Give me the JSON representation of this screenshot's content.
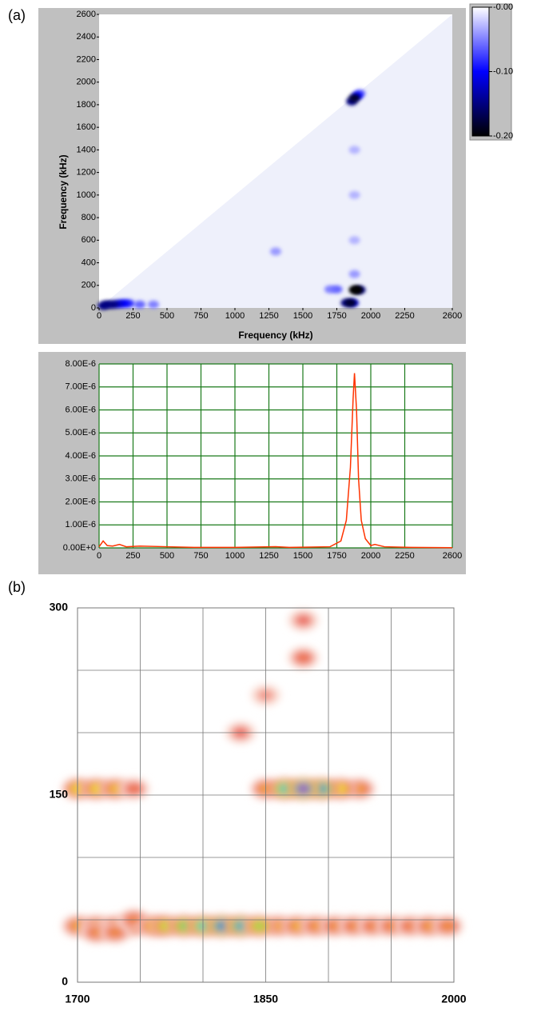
{
  "panel_labels": [
    "(a)",
    "(b)"
  ],
  "chart_data": [
    {
      "type": "heatmap",
      "xlabel": "Frequency (kHz)",
      "ylabel": "Frequency (kHz)",
      "xlim": [
        0,
        2600
      ],
      "ylim": [
        0,
        2600
      ],
      "xticks": [
        0,
        250,
        500,
        750,
        1000,
        1250,
        1500,
        1750,
        2000,
        2250,
        2600
      ],
      "yticks": [
        0,
        200,
        400,
        600,
        800,
        1000,
        1200,
        1400,
        1600,
        1800,
        2000,
        2200,
        2400,
        2600
      ],
      "clim": [
        -0.2,
        0
      ],
      "colormap": [
        "#000000",
        "#0000ff",
        "#ffffff"
      ],
      "cticks": [
        {
          "value": 0,
          "label": "-0.00"
        },
        {
          "value": -0.1,
          "label": "-0.10"
        },
        {
          "value": -0.2,
          "label": "-0.20"
        }
      ],
      "x": [
        400,
        300,
        220,
        180,
        140,
        100,
        60,
        30,
        1880,
        1880,
        1880,
        1880,
        1300,
        1700,
        1750,
        1920,
        1900,
        1860,
        1880,
        1870,
        1820,
        1850,
        1920,
        1880,
        1900
      ],
      "y": [
        30,
        30,
        40,
        40,
        35,
        30,
        30,
        20,
        300,
        600,
        1000,
        1400,
        500,
        165,
        165,
        1900,
        1880,
        1830,
        1860,
        45,
        45,
        45,
        160,
        160,
        160
      ],
      "z": [
        -0.05,
        -0.06,
        -0.08,
        -0.1,
        -0.12,
        -0.15,
        -0.15,
        -0.15,
        -0.04,
        -0.03,
        -0.03,
        -0.03,
        -0.04,
        -0.05,
        -0.06,
        -0.06,
        -0.1,
        -0.15,
        -0.18,
        -0.12,
        -0.15,
        -0.18,
        -0.15,
        -0.2,
        -0.2
      ]
    },
    {
      "type": "line",
      "xlim": [
        0,
        2600
      ],
      "ylim": [
        0,
        8e-06
      ],
      "xticks": [
        0,
        250,
        500,
        750,
        1000,
        1250,
        1500,
        1750,
        2000,
        2250,
        2600
      ],
      "yticks": [
        {
          "value": 0,
          "label": "0.00E+0"
        },
        {
          "value": 1e-06,
          "label": "1.00E-6"
        },
        {
          "value": 2e-06,
          "label": "2.00E-6"
        },
        {
          "value": 3e-06,
          "label": "3.00E-6"
        },
        {
          "value": 4e-06,
          "label": "4.00E-6"
        },
        {
          "value": 5e-06,
          "label": "5.00E-6"
        },
        {
          "value": 6e-06,
          "label": "6.00E-6"
        },
        {
          "value": 7e-06,
          "label": "7.00E-6"
        },
        {
          "value": 8e-06,
          "label": "8.00E-6"
        }
      ],
      "grid": true,
      "grid_color": "#1a7a1a",
      "color": "#ff3300",
      "x": [
        0,
        30,
        60,
        100,
        150,
        200,
        300,
        500,
        700,
        1000,
        1300,
        1400,
        1500,
        1700,
        1780,
        1820,
        1850,
        1870,
        1880,
        1895,
        1910,
        1930,
        1960,
        2000,
        2030,
        2100,
        2300,
        2600
      ],
      "values": [
        5e-08,
        3e-07,
        1e-07,
        8e-08,
        1.5e-07,
        5e-08,
        8e-08,
        5e-08,
        2e-08,
        2e-08,
        5e-08,
        2e-08,
        3e-08,
        5e-08,
        3e-07,
        1.2e-06,
        3.5e-06,
        6.5e-06,
        7.6e-06,
        6e-06,
        3e-06,
        1.2e-06,
        4e-07,
        1e-07,
        1.5e-07,
        5e-08,
        2e-08,
        1e-08
      ]
    },
    {
      "type": "heatmap",
      "xlim": [
        1700,
        2000
      ],
      "ylim": [
        0,
        300
      ],
      "xticks": [
        1700,
        1850,
        2000
      ],
      "yticks": [
        0,
        150,
        300
      ],
      "xgrid": [
        1750,
        1800,
        1850,
        1900,
        1950
      ],
      "ygrid": [
        50,
        100,
        150,
        200,
        250
      ],
      "clim": [
        0,
        1
      ],
      "colormap": [
        "#ffffff",
        "#f7c7b8",
        "#e85a50",
        "#f2a030",
        "#f0e040",
        "#60d060",
        "#40d0d0",
        "#3040e0",
        "#c040c0"
      ],
      "x": [
        1830,
        1880,
        1880,
        1850,
        1700,
        1715,
        1730,
        1745,
        1860,
        1875,
        1890,
        1905,
        1920,
        1935,
        1950,
        1965,
        1980,
        1995,
        1715,
        1730,
        1745,
        1760,
        1700,
        1715,
        1730,
        1745,
        1850,
        1925,
        1910,
        1770,
        1785,
        1800,
        1815,
        1830,
        1845,
        1865,
        1895,
        1880
      ],
      "y": [
        200,
        260,
        290,
        230,
        45,
        45,
        45,
        45,
        45,
        45,
        45,
        45,
        45,
        45,
        45,
        45,
        45,
        45,
        40,
        40,
        50,
        45,
        155,
        155,
        155,
        155,
        155,
        155,
        155,
        45,
        45,
        45,
        45,
        45,
        45,
        155,
        155,
        155
      ],
      "z": [
        0.25,
        0.3,
        0.25,
        0.2,
        0.4,
        0.38,
        0.36,
        0.35,
        0.4,
        0.42,
        0.38,
        0.36,
        0.35,
        0.34,
        0.35,
        0.33,
        0.38,
        0.36,
        0.35,
        0.35,
        0.34,
        0.45,
        0.5,
        0.5,
        0.45,
        0.3,
        0.4,
        0.38,
        0.5,
        0.55,
        0.65,
        0.75,
        0.85,
        0.8,
        0.6,
        0.75,
        0.8,
        1.0
      ]
    }
  ]
}
